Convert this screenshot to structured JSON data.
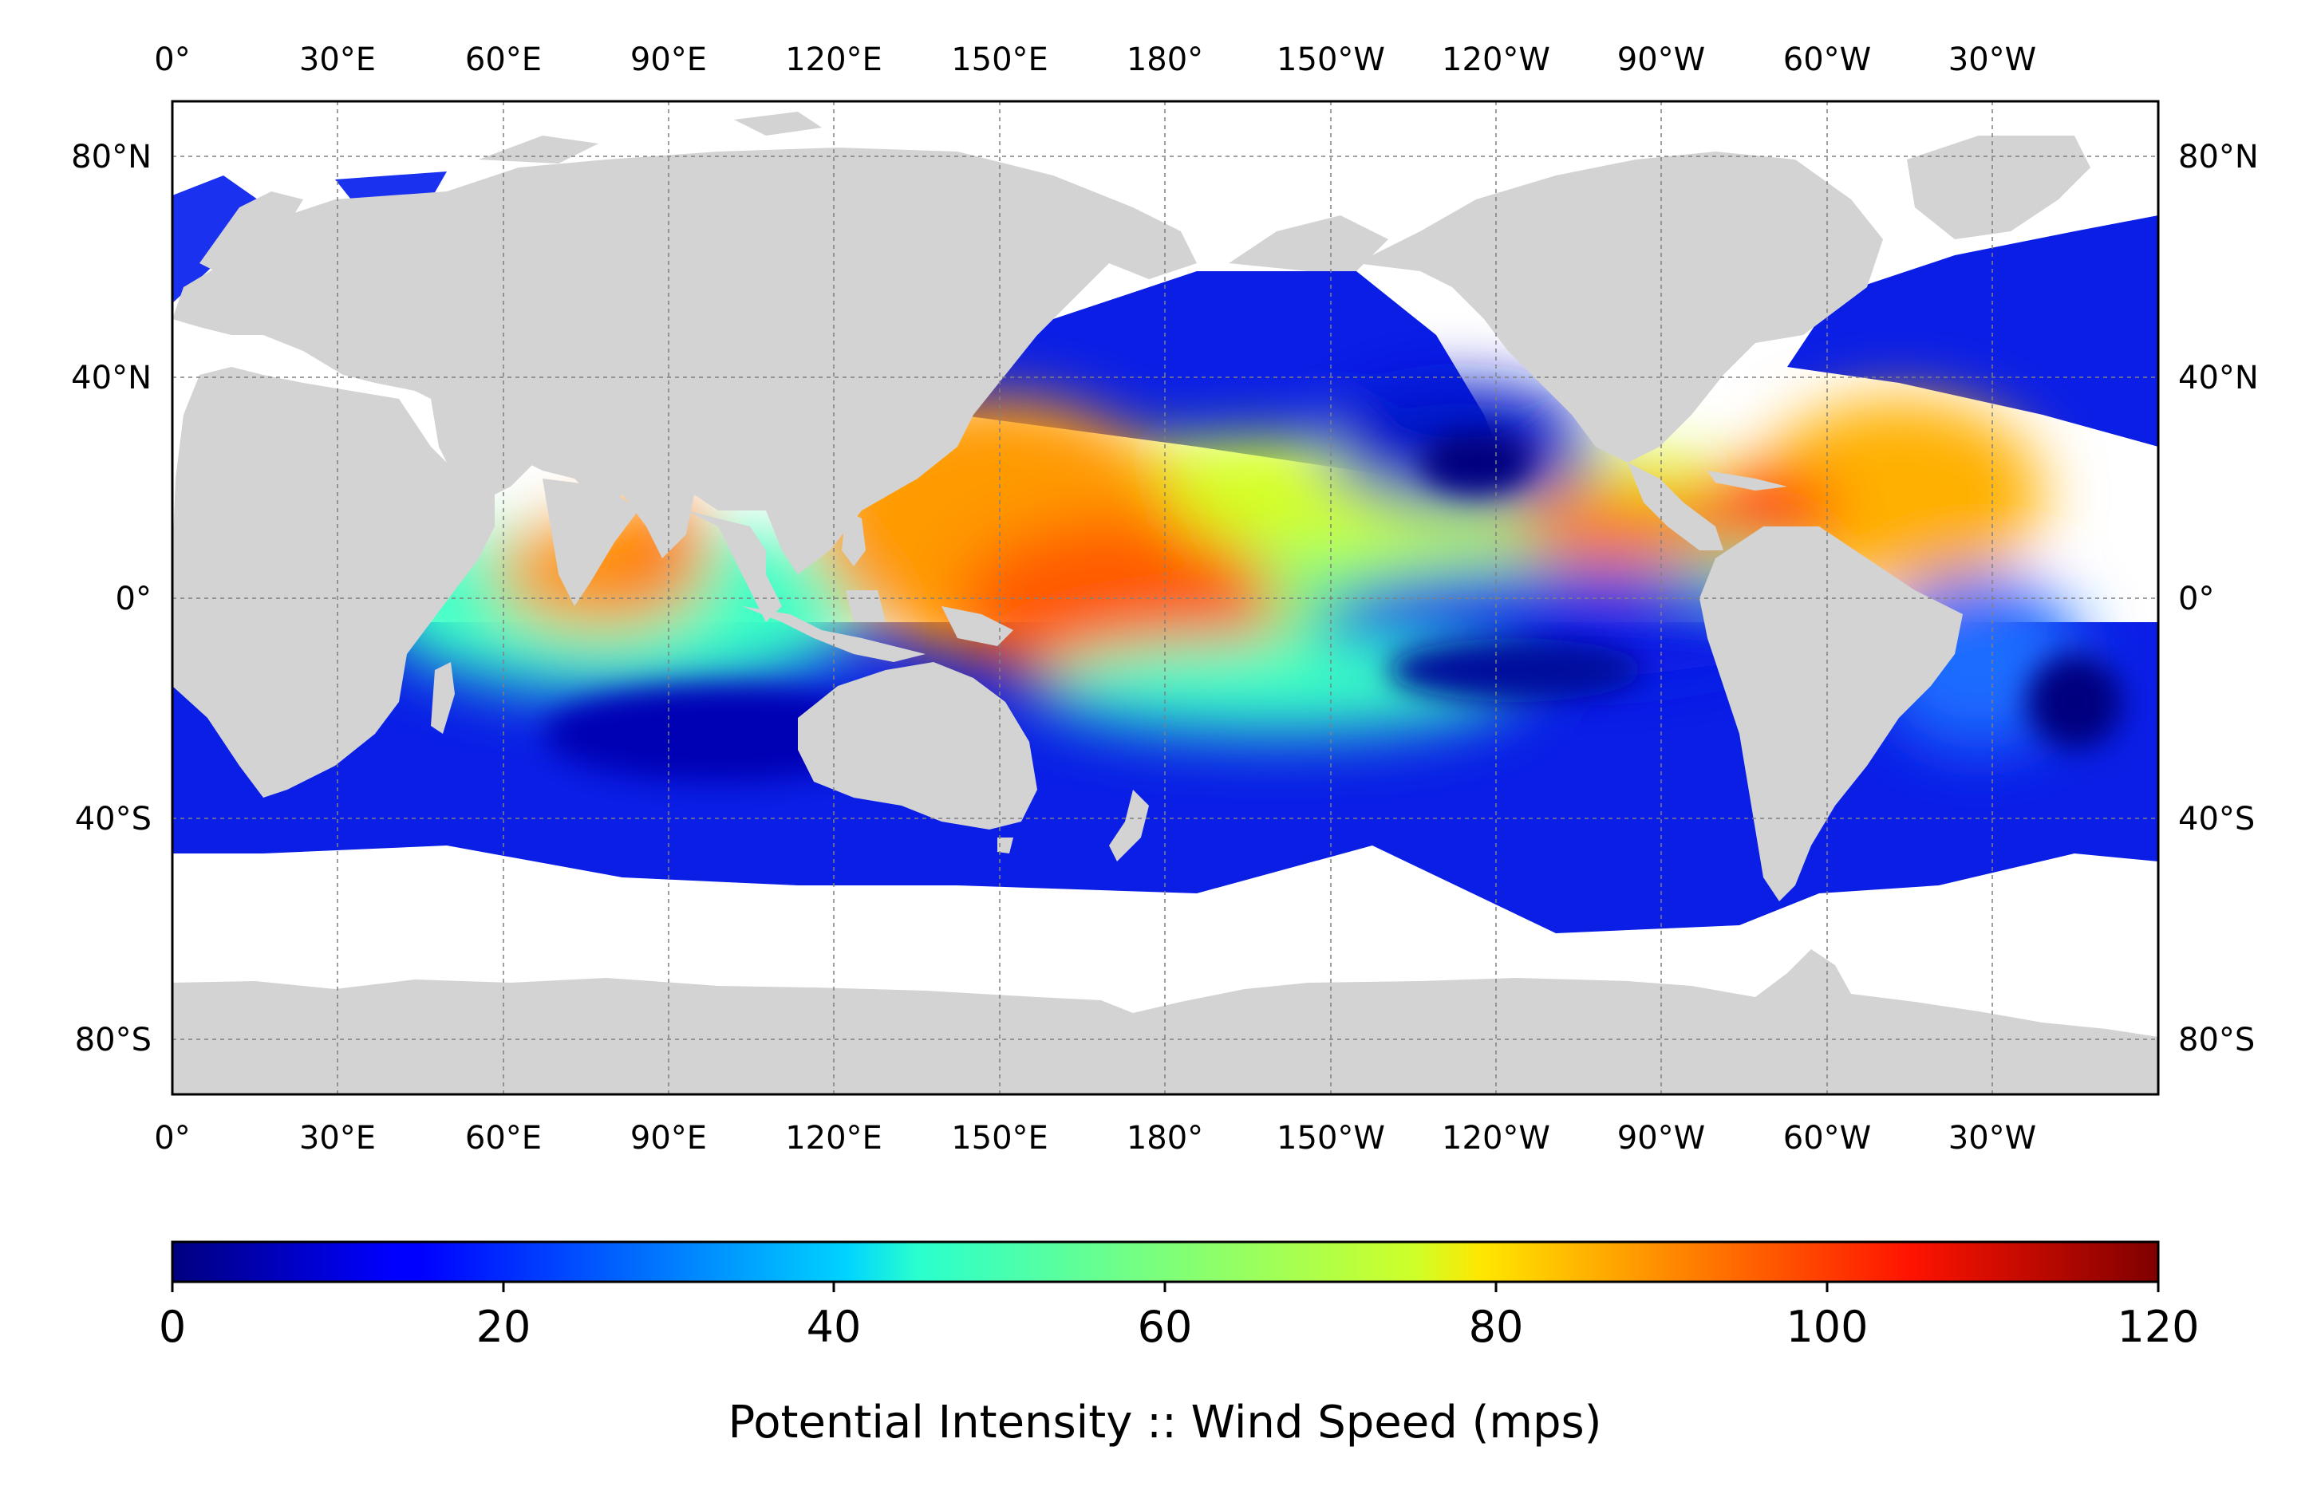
{
  "map": {
    "lon_labels": [
      "0°",
      "30°E",
      "60°E",
      "90°E",
      "120°E",
      "150°E",
      "180°",
      "150°W",
      "120°W",
      "90°W",
      "60°W",
      "30°W"
    ],
    "lat_labels": [
      "80°N",
      "40°N",
      "0°",
      "40°S",
      "80°S"
    ],
    "grid": true,
    "land_color": "#d3d3d3",
    "colormap": "jet",
    "field": "Potential Intensity"
  },
  "colorbar": {
    "ticks": [
      "0",
      "20",
      "40",
      "60",
      "80",
      "100",
      "120"
    ],
    "range": [
      0,
      120
    ],
    "label": "Potential Intensity :: Wind Speed (mps)"
  }
}
